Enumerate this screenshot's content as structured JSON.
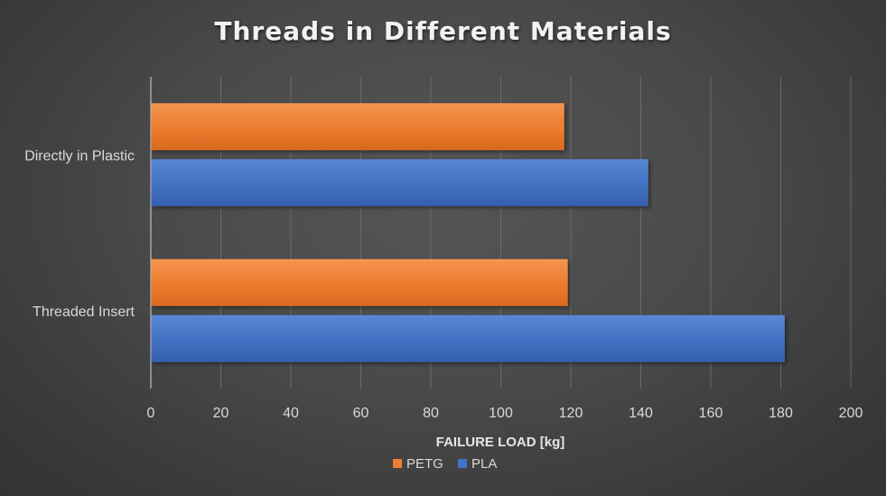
{
  "chart_data": {
    "type": "bar",
    "orientation": "horizontal",
    "title": "Threads in Different Materials",
    "xlabel": "FAILURE LOAD [kg]",
    "ylabel": "",
    "categories": [
      "Directly in Plastic",
      "Threaded Insert"
    ],
    "series": [
      {
        "name": "PETG",
        "color": "#ed7d31",
        "values": [
          118,
          119
        ]
      },
      {
        "name": "PLA",
        "color": "#4472c4",
        "values": [
          142,
          181
        ]
      }
    ],
    "xlim": [
      0,
      200
    ],
    "xticks": [
      "0",
      "20",
      "40",
      "60",
      "80",
      "100",
      "120",
      "140",
      "160",
      "180",
      "200"
    ],
    "grid": true,
    "legend": "bottom"
  }
}
